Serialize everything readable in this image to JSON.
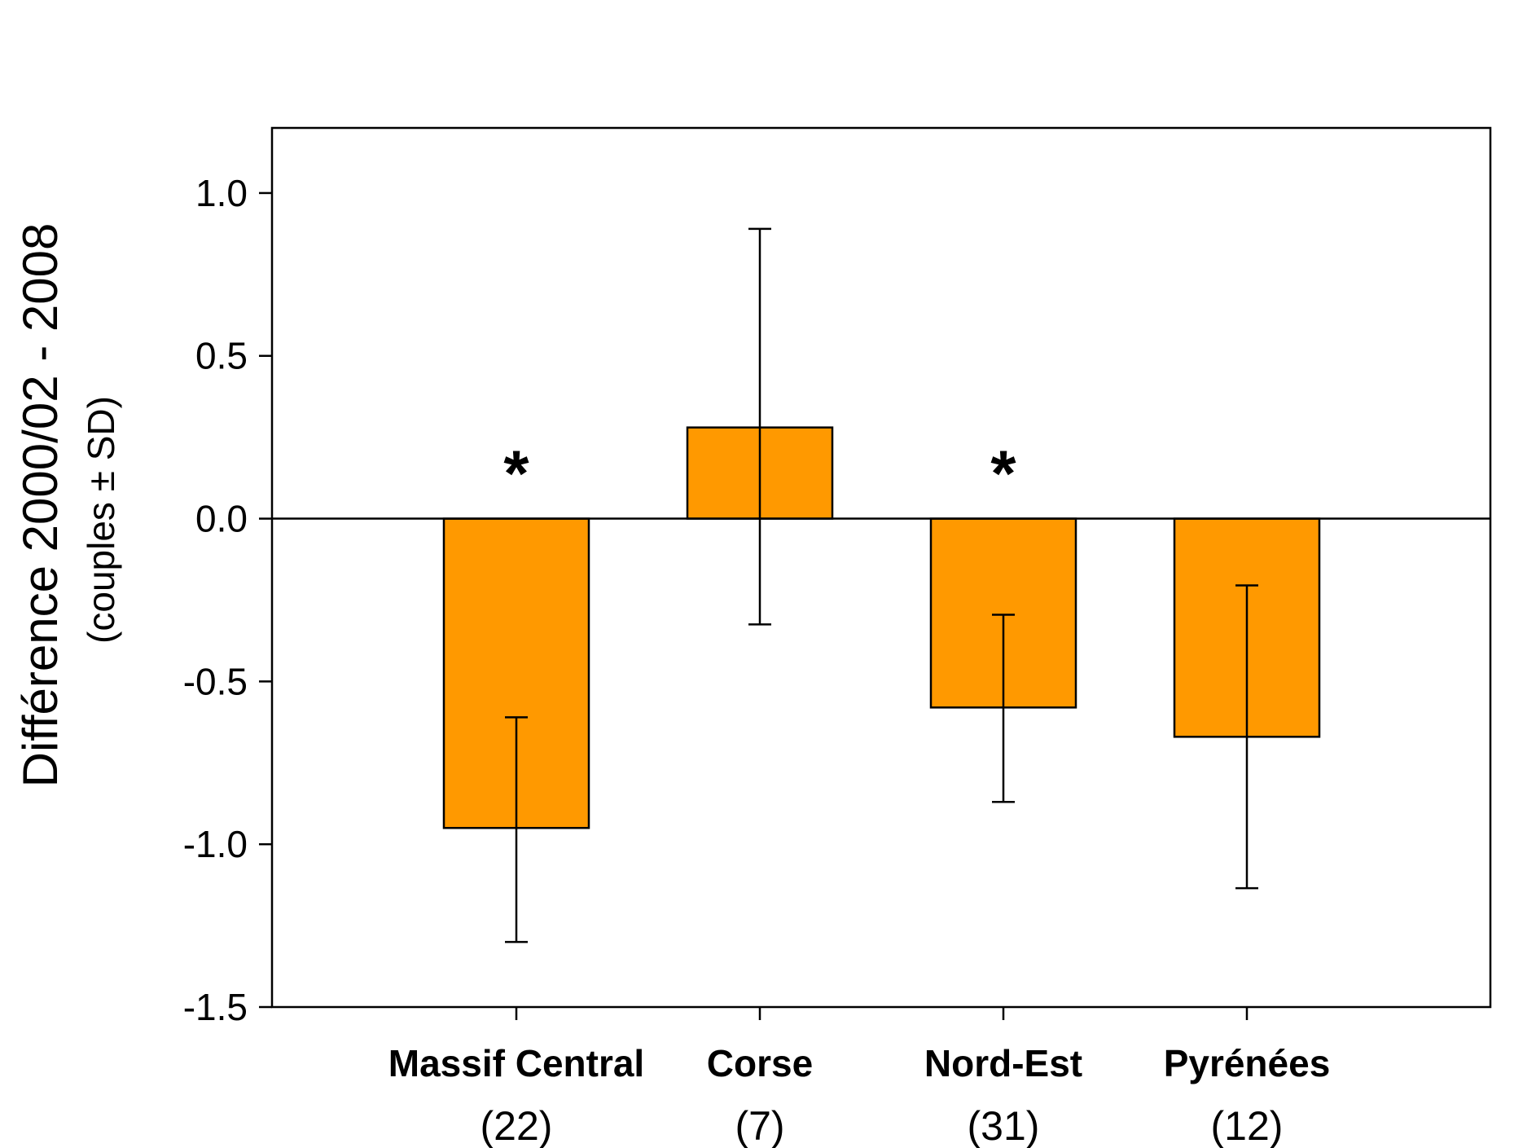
{
  "chart_data": {
    "type": "bar",
    "title": "",
    "xlabel": "",
    "ylabel": "Différence 2000/02 - 2008",
    "ylabel_sub": "(couples ± SD)",
    "categories": [
      "Massif Central",
      "Corse",
      "Nord-Est",
      "Pyrénées"
    ],
    "sample_sizes": [
      "(22)",
      "(7)",
      "(31)",
      "(12)"
    ],
    "values": [
      -0.95,
      0.28,
      -0.58,
      -0.67
    ],
    "sd_upper": [
      -0.61,
      0.89,
      -0.295,
      -0.205
    ],
    "sd_lower": [
      -1.3,
      -0.325,
      -0.87,
      -1.135
    ],
    "significant": [
      "*",
      "",
      "*",
      ""
    ],
    "ylim": [
      -1.5,
      1.2
    ],
    "yticks": [
      1.0,
      0.5,
      0.0,
      -0.5,
      -1.0,
      -1.5
    ],
    "ytick_labels": [
      "1.0",
      "0.5",
      "0.0",
      "-0.5",
      "-1.0",
      "-1.5"
    ],
    "bar_color": "#FF9900",
    "grid": false
  }
}
